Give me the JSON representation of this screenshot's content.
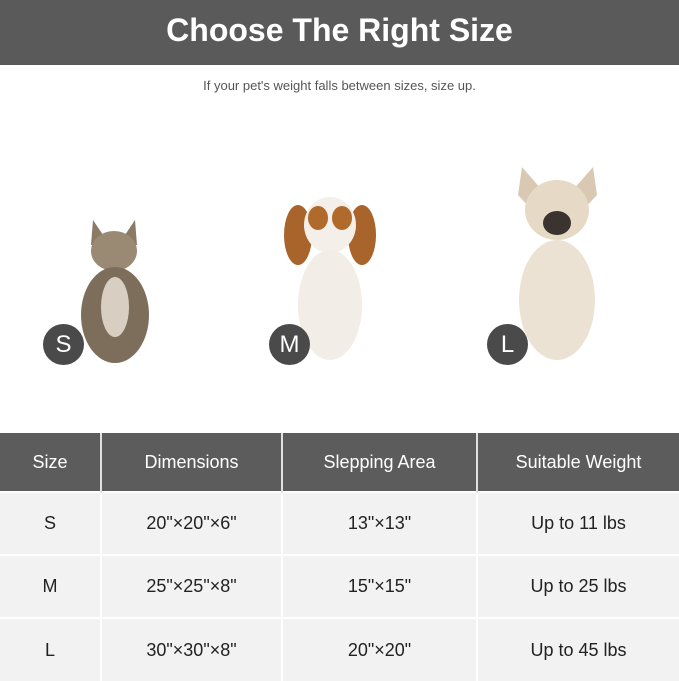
{
  "title": "Choose The Right Size",
  "subtitle": "If your pet's weight falls between sizes, size up.",
  "pets": [
    {
      "size": "S",
      "animal": "cat"
    },
    {
      "size": "M",
      "animal": "cavalier-spaniel"
    },
    {
      "size": "L",
      "animal": "french-bulldog"
    }
  ],
  "table": {
    "headers": [
      "Size",
      "Dimensions",
      "Slepping Area",
      "Suitable Weight"
    ],
    "rows": [
      [
        "S",
        "20\"×20\"×6\"",
        "13\"×13\"",
        "Up to 11 lbs"
      ],
      [
        "M",
        "25\"×25\"×8\"",
        "15\"×15\"",
        "Up to 25 lbs"
      ],
      [
        "L",
        "30\"×30\"×8\"",
        "20\"×20\"",
        "Up to 45 lbs"
      ]
    ]
  },
  "colors": {
    "header": "#5a5a5a",
    "badge": "#4a4a4a",
    "row": "#f2f2f2"
  }
}
